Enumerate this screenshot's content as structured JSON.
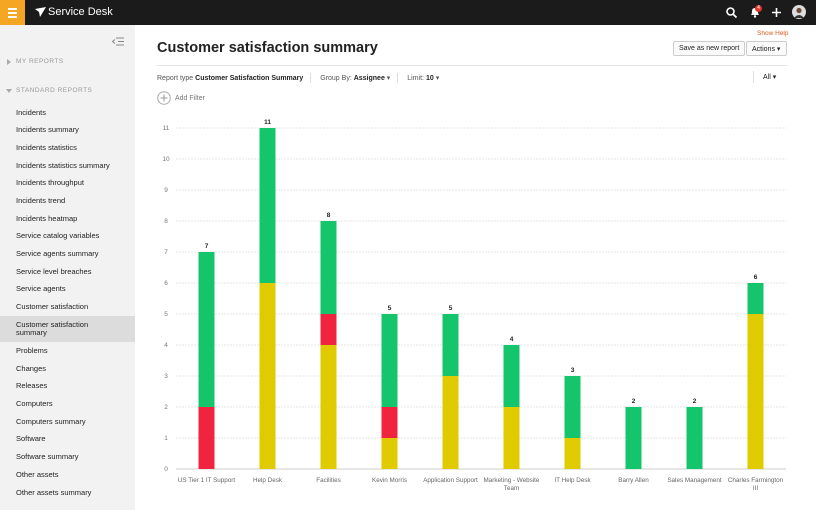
{
  "header": {
    "app_name": "Service Desk",
    "notification_count": "4"
  },
  "sidebar": {
    "sections": [
      {
        "title": "MY REPORTS",
        "items": []
      },
      {
        "title": "STANDARD REPORTS",
        "items": [
          {
            "label": "Incidents"
          },
          {
            "label": "Incidents summary"
          },
          {
            "label": "Incidents statistics"
          },
          {
            "label": "Incidents statistics summary"
          },
          {
            "label": "Incidents throughput"
          },
          {
            "label": "Incidents trend"
          },
          {
            "label": "Incidents heatmap"
          },
          {
            "label": "Service catalog variables"
          },
          {
            "label": "Service agents summary"
          },
          {
            "label": "Service level breaches"
          },
          {
            "label": "Service agents"
          },
          {
            "label": "Customer satisfaction"
          },
          {
            "label": "Customer satisfaction summary",
            "selected": true
          },
          {
            "label": "Problems"
          },
          {
            "label": "Changes"
          },
          {
            "label": "Releases"
          },
          {
            "label": "Computers"
          },
          {
            "label": "Computers summary"
          },
          {
            "label": "Software"
          },
          {
            "label": "Software summary"
          },
          {
            "label": "Other assets"
          },
          {
            "label": "Other assets summary"
          }
        ]
      }
    ]
  },
  "page": {
    "title": "Customer satisfaction summary",
    "show_help": "Show Help",
    "buttons": [
      "Save as new report",
      "Actions"
    ]
  },
  "toolbar": {
    "report_type_label": "Report type",
    "report_type": "Customer Satisfaction Summary",
    "group_by_label": "Group By:",
    "group_by": "Assignee",
    "limit_label": "Limit:",
    "limit": 10,
    "filter": "All",
    "add_filter": "Add Filter"
  },
  "chart_data": {
    "type": "stacked_bar",
    "categories": [
      "US Tier 1 IT Support",
      "Help Desk",
      "Facilities",
      "Kevin Morris",
      "Application Support",
      "Marketing - Website Team",
      "IT Help Desk",
      "Barry Allen",
      "Sales Management",
      "Charles Farmington III"
    ],
    "series": [
      {
        "color": "#dfcb00",
        "values": [
          0,
          6,
          4,
          1,
          3,
          2,
          1,
          0,
          0,
          5
        ]
      },
      {
        "color": "#f0243f",
        "values": [
          2,
          0,
          1,
          1,
          0,
          0,
          0,
          0,
          0,
          0
        ]
      },
      {
        "color": "#14c56b",
        "values": [
          5,
          5,
          3,
          3,
          2,
          2,
          2,
          2,
          2,
          1
        ]
      }
    ],
    "totals": [
      7,
      11,
      8,
      5,
      5,
      4,
      3,
      2,
      2,
      6
    ],
    "ylim": [
      0,
      11
    ],
    "yticks": [
      0,
      1,
      2,
      3,
      4,
      5,
      6,
      7,
      8,
      9,
      10,
      11
    ],
    "grid": true
  }
}
